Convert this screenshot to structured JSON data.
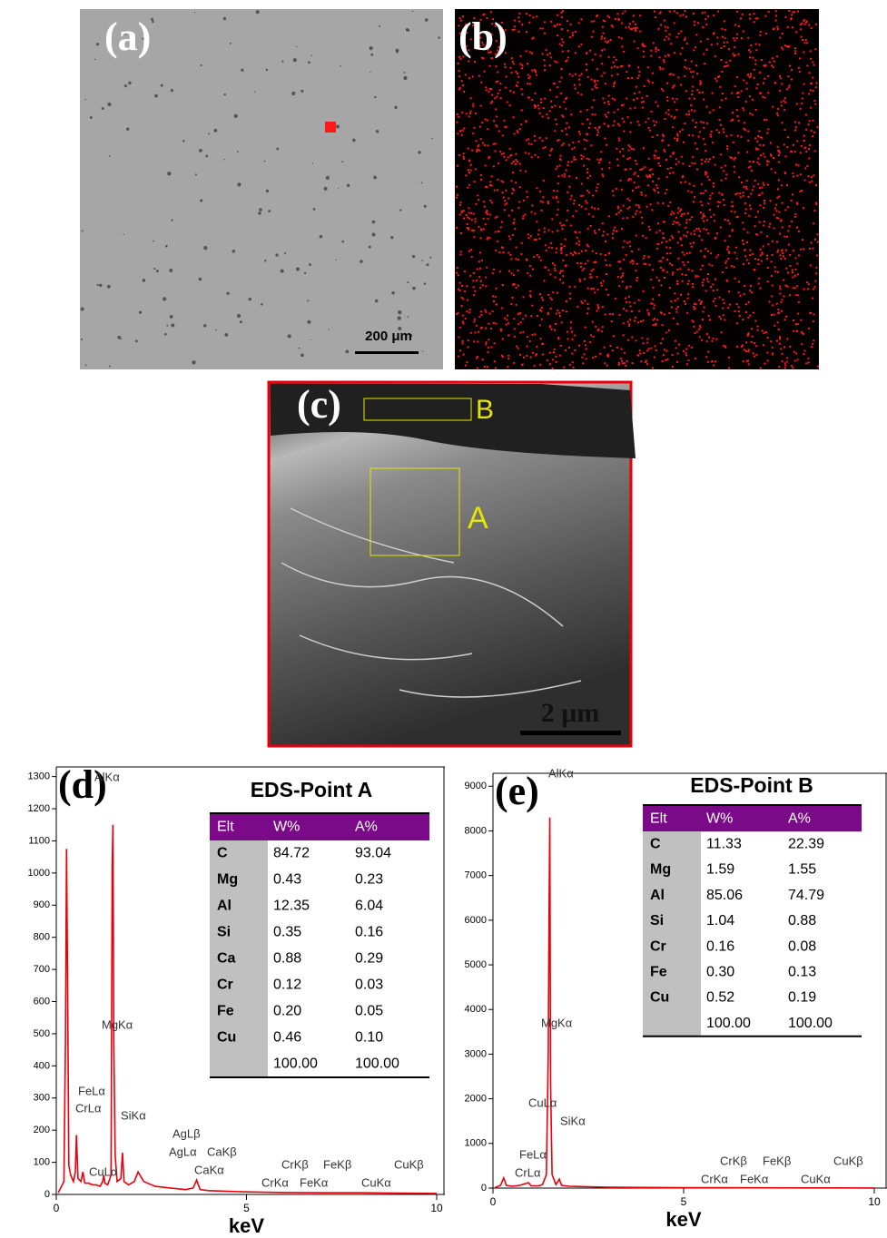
{
  "panels": {
    "a": {
      "label": "(a)",
      "scale_bar": "200 μm"
    },
    "b": {
      "label": "(b)"
    },
    "c": {
      "label": "(c)",
      "regions": [
        "B",
        "A"
      ],
      "scale_bar": "2 μm"
    }
  },
  "chart_data": [
    {
      "type": "line",
      "label": "(d)",
      "title": "EDS-Point A",
      "x_label": "keV",
      "color": "#e8000b",
      "x": [
        0.05,
        0.2,
        0.24,
        0.27,
        0.3,
        0.33,
        0.38,
        0.45,
        0.5,
        0.53,
        0.57,
        0.65,
        0.7,
        0.75,
        0.85,
        0.95,
        1.05,
        1.15,
        1.22,
        1.25,
        1.28,
        1.35,
        1.44,
        1.47,
        1.49,
        1.51,
        1.55,
        1.6,
        1.7,
        1.74,
        1.78,
        1.9,
        2.05,
        2.15,
        2.3,
        2.6,
        3.0,
        3.4,
        3.6,
        3.69,
        3.78,
        4.0,
        5.0,
        6.0,
        7.0,
        8.0,
        9.0,
        10.0
      ],
      "values": [
        5,
        40,
        470,
        1075,
        600,
        90,
        60,
        40,
        70,
        185,
        50,
        40,
        70,
        35,
        35,
        30,
        30,
        25,
        40,
        60,
        35,
        30,
        60,
        1020,
        1150,
        480,
        120,
        40,
        50,
        130,
        40,
        30,
        40,
        70,
        40,
        25,
        20,
        15,
        20,
        45,
        15,
        12,
        8,
        6,
        5,
        5,
        4,
        3
      ],
      "xlim": [
        0,
        10
      ],
      "xticks": [
        0,
        5,
        10
      ],
      "ylim": [
        0,
        1330
      ],
      "yticks": [
        0,
        100,
        200,
        300,
        400,
        500,
        600,
        700,
        800,
        900,
        1000,
        1100,
        1200,
        1300
      ],
      "annotations": [
        "AlKα",
        "MgKα",
        "FeLα",
        "CrLα",
        "SiKα",
        "CuLα",
        "AgLβ",
        "AgLα",
        "CaKβ",
        "CaKα",
        "CrKβ",
        "FeKβ",
        "CuKβ",
        "CrKα",
        "FeKα",
        "CuKα"
      ],
      "table": {
        "header": [
          "Elt",
          "W%",
          "A%"
        ],
        "rows": [
          [
            "C",
            "84.72",
            "93.04"
          ],
          [
            "Mg",
            "0.43",
            "0.23"
          ],
          [
            "Al",
            "12.35",
            "6.04"
          ],
          [
            "Si",
            "0.35",
            "0.16"
          ],
          [
            "Ca",
            "0.88",
            "0.29"
          ],
          [
            "Cr",
            "0.12",
            "0.03"
          ],
          [
            "Fe",
            "0.20",
            "0.05"
          ],
          [
            "Cu",
            "0.46",
            "0.10"
          ]
        ],
        "total": [
          "100.00",
          "100.00"
        ]
      }
    },
    {
      "type": "line",
      "label": "(e)",
      "title": "EDS-Point B",
      "x_label": "keV",
      "color": "#e8000b",
      "x": [
        0.05,
        0.2,
        0.28,
        0.35,
        0.5,
        0.7,
        0.93,
        1.0,
        1.2,
        1.3,
        1.4,
        1.45,
        1.47,
        1.49,
        1.51,
        1.55,
        1.65,
        1.74,
        1.8,
        2.0,
        2.5,
        3.0,
        4.0,
        5.0,
        6.0,
        7.0,
        8.0,
        9.0,
        10.0
      ],
      "values": [
        10,
        60,
        230,
        60,
        40,
        60,
        120,
        50,
        50,
        80,
        300,
        3000,
        6000,
        8300,
        2400,
        300,
        80,
        200,
        60,
        40,
        30,
        20,
        15,
        10,
        8,
        6,
        5,
        4,
        3
      ],
      "xlim": [
        0,
        10
      ],
      "xticks": [
        0,
        5,
        10
      ],
      "ylim": [
        0,
        9290
      ],
      "yticks": [
        0,
        1000,
        2000,
        3000,
        4000,
        5000,
        6000,
        7000,
        8000,
        9000
      ],
      "annotations": [
        "AlKα",
        "MgKα",
        "CuLα",
        "SiKα",
        "FeLα",
        "CrLα",
        "CrKβ",
        "FeKβ",
        "CuKβ",
        "CrKα",
        "FeKα",
        "CuKα"
      ],
      "table": {
        "header": [
          "Elt",
          "W%",
          "A%"
        ],
        "rows": [
          [
            "C",
            "11.33",
            "22.39"
          ],
          [
            "Mg",
            "1.59",
            "1.55"
          ],
          [
            "Al",
            "85.06",
            "74.79"
          ],
          [
            "Si",
            "1.04",
            "0.88"
          ],
          [
            "Cr",
            "0.16",
            "0.08"
          ],
          [
            "Fe",
            "0.30",
            "0.13"
          ],
          [
            "Cu",
            "0.52",
            "0.19"
          ]
        ],
        "total": [
          "100.00",
          "100.00"
        ]
      }
    }
  ]
}
